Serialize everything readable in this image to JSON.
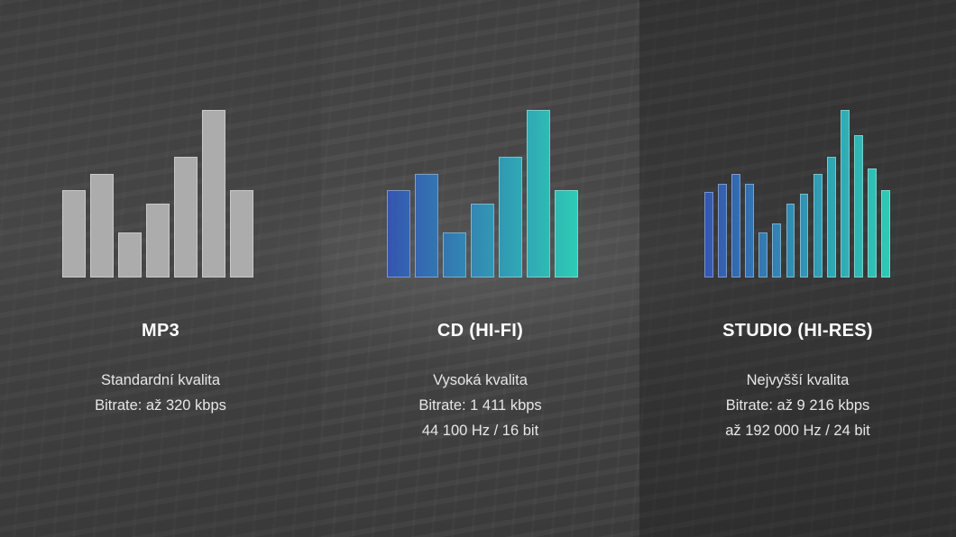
{
  "colors": {
    "grey_bar": "#acacac",
    "gradient_start": "#3554b0",
    "gradient_end": "#2ecbb5"
  },
  "panels": [
    {
      "title": "MP3",
      "lines": [
        "Standardní kvalita",
        "Bitrate: až 320 kbps"
      ],
      "bar_style": "grey",
      "bar_levels": [
        0.52,
        0.62,
        0.27,
        0.44,
        0.72,
        1.0,
        0.52
      ]
    },
    {
      "title": "CD (HI-FI)",
      "lines": [
        "Vysoká kvalita",
        "Bitrate: 1 411 kbps",
        "44 100 Hz / 16 bit"
      ],
      "bar_style": "gradient",
      "bar_levels": [
        0.52,
        0.62,
        0.27,
        0.44,
        0.72,
        1.0,
        0.52
      ]
    },
    {
      "title": "STUDIO (HI-RES)",
      "lines": [
        "Nejvyšší kvalita",
        "Bitrate: až 9 216 kbps",
        "až 192 000 Hz / 24 bit"
      ],
      "bar_style": "gradient",
      "bar_levels": [
        0.51,
        0.56,
        0.62,
        0.56,
        0.27,
        0.32,
        0.44,
        0.5,
        0.62,
        0.72,
        1.0,
        0.85,
        0.65,
        0.52
      ]
    }
  ]
}
